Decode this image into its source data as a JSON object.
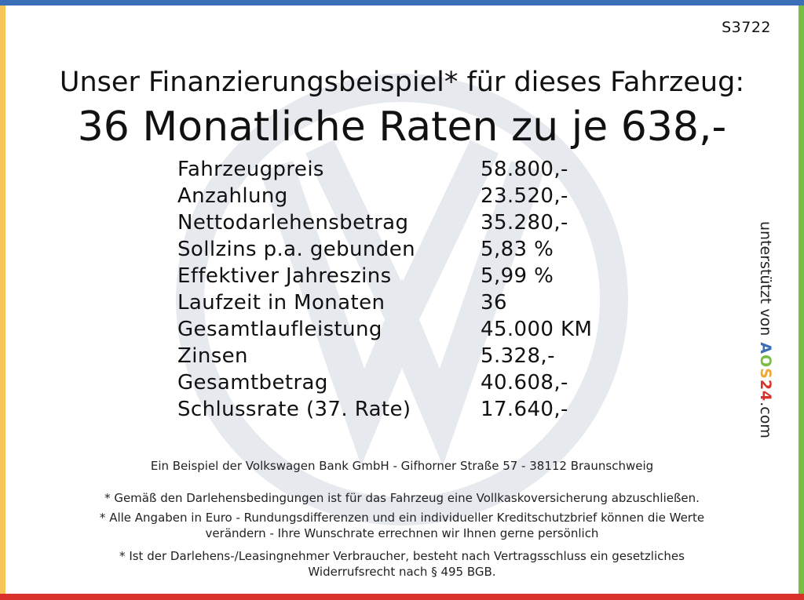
{
  "code": "S3722",
  "headline": "Unser Finanzierungsbeispiel* für dieses Fahrzeug:",
  "subheadline": "36 Monatliche Raten zu je 638,-",
  "rows": [
    {
      "label": "Fahrzeugpreis",
      "value": "58.800,-"
    },
    {
      "label": "Anzahlung",
      "value": "23.520,-"
    },
    {
      "label": "Nettodarlehensbetrag",
      "value": "35.280,-"
    },
    {
      "label": "Sollzins p.a. gebunden",
      "value": "5,83 %"
    },
    {
      "label": "Effektiver Jahreszins",
      "value": "5,99 %"
    },
    {
      "label": "Laufzeit in Monaten",
      "value": "36"
    },
    {
      "label": "Gesamtlaufleistung",
      "value": "45.000 KM"
    },
    {
      "label": "Zinsen",
      "value": "5.328,-"
    },
    {
      "label": "Gesamtbetrag",
      "value": "40.608,-"
    },
    {
      "label": "Schlussrate (37. Rate)",
      "value": "17.640,-"
    }
  ],
  "sponsor": {
    "prefix": "unterstützt von",
    "logo": {
      "a": "A",
      "o": "O",
      "s": "S",
      "n": "24"
    },
    "suffix": ".com"
  },
  "bank_line": "Ein Beispiel der Volkswagen Bank GmbH - Gifhorner Straße 57 - 38112 Braunschweig",
  "note1": "* Gemäß den Darlehensbedingungen ist für das Fahrzeug eine Vollkaskoversicherung abzuschließen.",
  "note2_line1": "* Alle Angaben in Euro - Rundungsdifferenzen und ein individueller Kreditschutzbrief können die Werte",
  "note2_line2": "verändern - Ihre Wunschrate errechnen wir Ihnen gerne persönlich",
  "note3_line1": "* Ist der Darlehens-/Leasingnehmer Verbraucher, besteht nach Vertragsschluss ein gesetzliches",
  "note3_line2": "Widerrufsrecht nach § 495 BGB.",
  "colors": {
    "top": "#3a6fb7",
    "left": "#f4c655",
    "right": "#79bd45",
    "bottom": "#d9322b",
    "watermark": "#e6e9ee"
  },
  "watermark_icon": "vw-logo-watermark"
}
